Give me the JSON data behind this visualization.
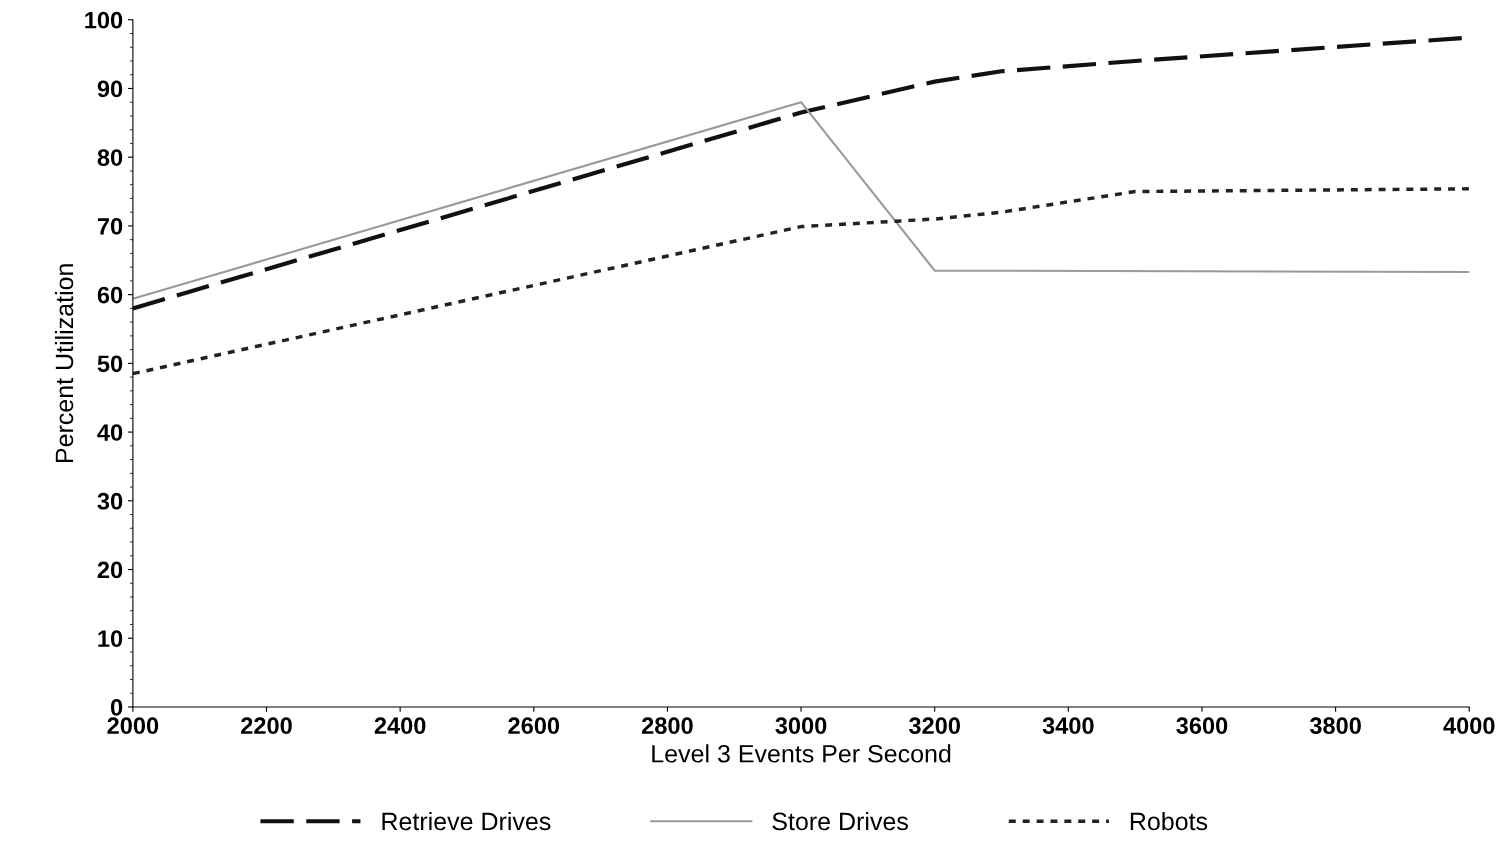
{
  "chart_data": {
    "type": "line",
    "xlabel": "Level 3 Events Per Second",
    "ylabel": "Percent Utilization",
    "xlim": [
      2000,
      4000
    ],
    "xticks": [
      2000,
      2200,
      2400,
      2600,
      2800,
      3000,
      3200,
      3400,
      3600,
      3800,
      4000
    ],
    "ylim": [
      0,
      100
    ],
    "yticks": [
      0,
      10,
      20,
      30,
      40,
      50,
      60,
      70,
      80,
      90,
      100
    ],
    "grid": false,
    "legend": "bottom",
    "marker": "none",
    "series": [
      {
        "name": "Retrieve Drives",
        "color": "#111111",
        "line_style": "dashed",
        "x": [
          2000,
          3000,
          3200,
          3300,
          3500,
          4000
        ],
        "values": [
          58,
          86.5,
          91,
          92.5,
          94,
          97.4
        ]
      },
      {
        "name": "Store Drives",
        "color": "#999999",
        "line_style": "solid",
        "x": [
          2000,
          3000,
          3200,
          4000
        ],
        "values": [
          59.4,
          88,
          63.5,
          63.3
        ]
      },
      {
        "name": "Robots",
        "color": "#222222",
        "line_style": "dotted",
        "x": [
          2000,
          3000,
          3200,
          3300,
          3500,
          4000
        ],
        "values": [
          48.5,
          69.9,
          71,
          72,
          75,
          75.4
        ]
      }
    ]
  }
}
